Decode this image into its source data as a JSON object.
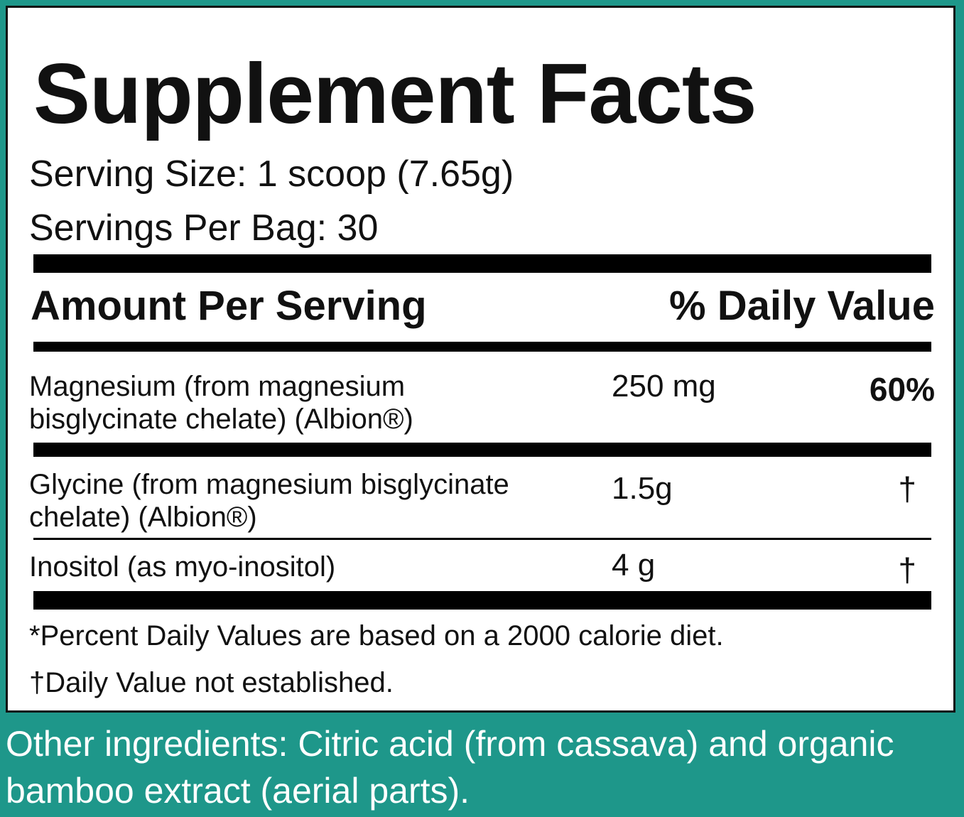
{
  "header": {
    "title": "Supplement Facts",
    "serving_size": "Serving Size: 1 scoop (7.65g)",
    "servings_per_container": "Servings Per Bag: 30"
  },
  "table": {
    "columns": [
      "Amount Per Serving",
      "% Daily Value"
    ],
    "rows": [
      [
        "Magnesium (from magnesium bisglycinate chelate) (Albion®)",
        "250 mg",
        "60%"
      ],
      [
        "Glycine (from magnesium bisglycinate chelate) (Albion®)",
        "1.5g",
        "†"
      ],
      [
        "Inositol (as myo-inositol)",
        "4 g",
        "†"
      ]
    ]
  },
  "footnotes": [
    "*Percent Daily Values are based on a 2000 calorie diet.",
    "†Daily Value not established."
  ],
  "other_ingredients": "Other ingredients: Citric acid (from cassava) and organic bamboo extract (aerial parts)."
}
